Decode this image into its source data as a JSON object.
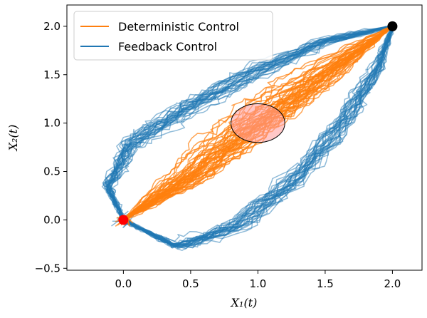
{
  "chart_data": {
    "type": "line",
    "xlabel": "X₁(t)",
    "ylabel": "X₂(t)",
    "xlim": [
      -0.42,
      2.22
    ],
    "ylim": [
      -0.52,
      2.22
    ],
    "xticks": [
      0.0,
      0.5,
      1.0,
      1.5,
      2.0
    ],
    "yticks": [
      -0.5,
      0.0,
      0.5,
      1.0,
      1.5,
      2.0
    ],
    "xtick_labels": [
      "0.0",
      "0.5",
      "1.0",
      "1.5",
      "2.0"
    ],
    "ytick_labels": [
      "−0.5",
      "0.0",
      "0.5",
      "1.0",
      "1.5",
      "2.0"
    ],
    "grid": false,
    "legend_placement": "top-left",
    "series": [
      {
        "name": "Deterministic Control",
        "color": "#ff7f0e",
        "description_path": [
          [
            0.0,
            0.0
          ],
          [
            0.5,
            0.45
          ],
          [
            1.0,
            1.0
          ],
          [
            1.5,
            1.5
          ],
          [
            2.0,
            2.0
          ]
        ],
        "spread": 0.28
      },
      {
        "name": "Feedback Control",
        "color": "#1f77b4",
        "upper_path": [
          [
            0.0,
            0.0
          ],
          [
            -0.12,
            0.35
          ],
          [
            0.05,
            0.8
          ],
          [
            0.5,
            1.18
          ],
          [
            1.0,
            1.55
          ],
          [
            1.5,
            1.85
          ],
          [
            2.0,
            2.0
          ]
        ],
        "lower_path": [
          [
            0.0,
            0.0
          ],
          [
            0.4,
            -0.28
          ],
          [
            0.85,
            -0.05
          ],
          [
            1.3,
            0.45
          ],
          [
            1.65,
            1.05
          ],
          [
            1.9,
            1.6
          ],
          [
            2.0,
            2.0
          ]
        ]
      }
    ],
    "markers": [
      {
        "x": 0.0,
        "y": 0.0,
        "color": "#ff0000"
      },
      {
        "x": 2.0,
        "y": 2.0,
        "color": "#000000"
      }
    ],
    "ellipse": {
      "cx": 1.0,
      "cy": 1.0,
      "rx": 0.2,
      "ry": 0.2,
      "fill": "#ff9999",
      "stroke": "#000000"
    }
  }
}
